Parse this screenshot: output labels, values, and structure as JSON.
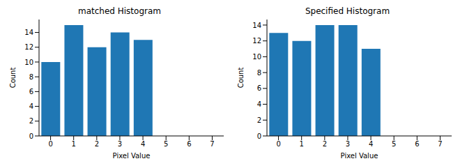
{
  "chart_data": [
    {
      "type": "bar",
      "title": "matched Histogram",
      "x_label": "Pixel Value",
      "y_label": "Count",
      "categories": [
        "0",
        "1",
        "2",
        "3",
        "4",
        "5",
        "6",
        "7"
      ],
      "values": [
        10,
        15,
        12,
        14,
        13,
        0,
        0,
        0
      ],
      "color": "#1f77b4",
      "ylim": [
        0,
        15.75
      ],
      "yticks": [
        0,
        2,
        4,
        6,
        8,
        10,
        12,
        14
      ],
      "grid": false
    },
    {
      "type": "bar",
      "title": "Specified Histogram",
      "x_label": "Pixel Value",
      "y_label": "Count",
      "categories": [
        "0",
        "1",
        "2",
        "3",
        "4",
        "5",
        "6",
        "7"
      ],
      "values": [
        13,
        12,
        14,
        14,
        11,
        0,
        0,
        0
      ],
      "color": "#1f77b4",
      "ylim": [
        0,
        14.7
      ],
      "yticks": [
        0,
        2,
        4,
        6,
        8,
        10,
        12,
        14
      ],
      "grid": false
    }
  ]
}
